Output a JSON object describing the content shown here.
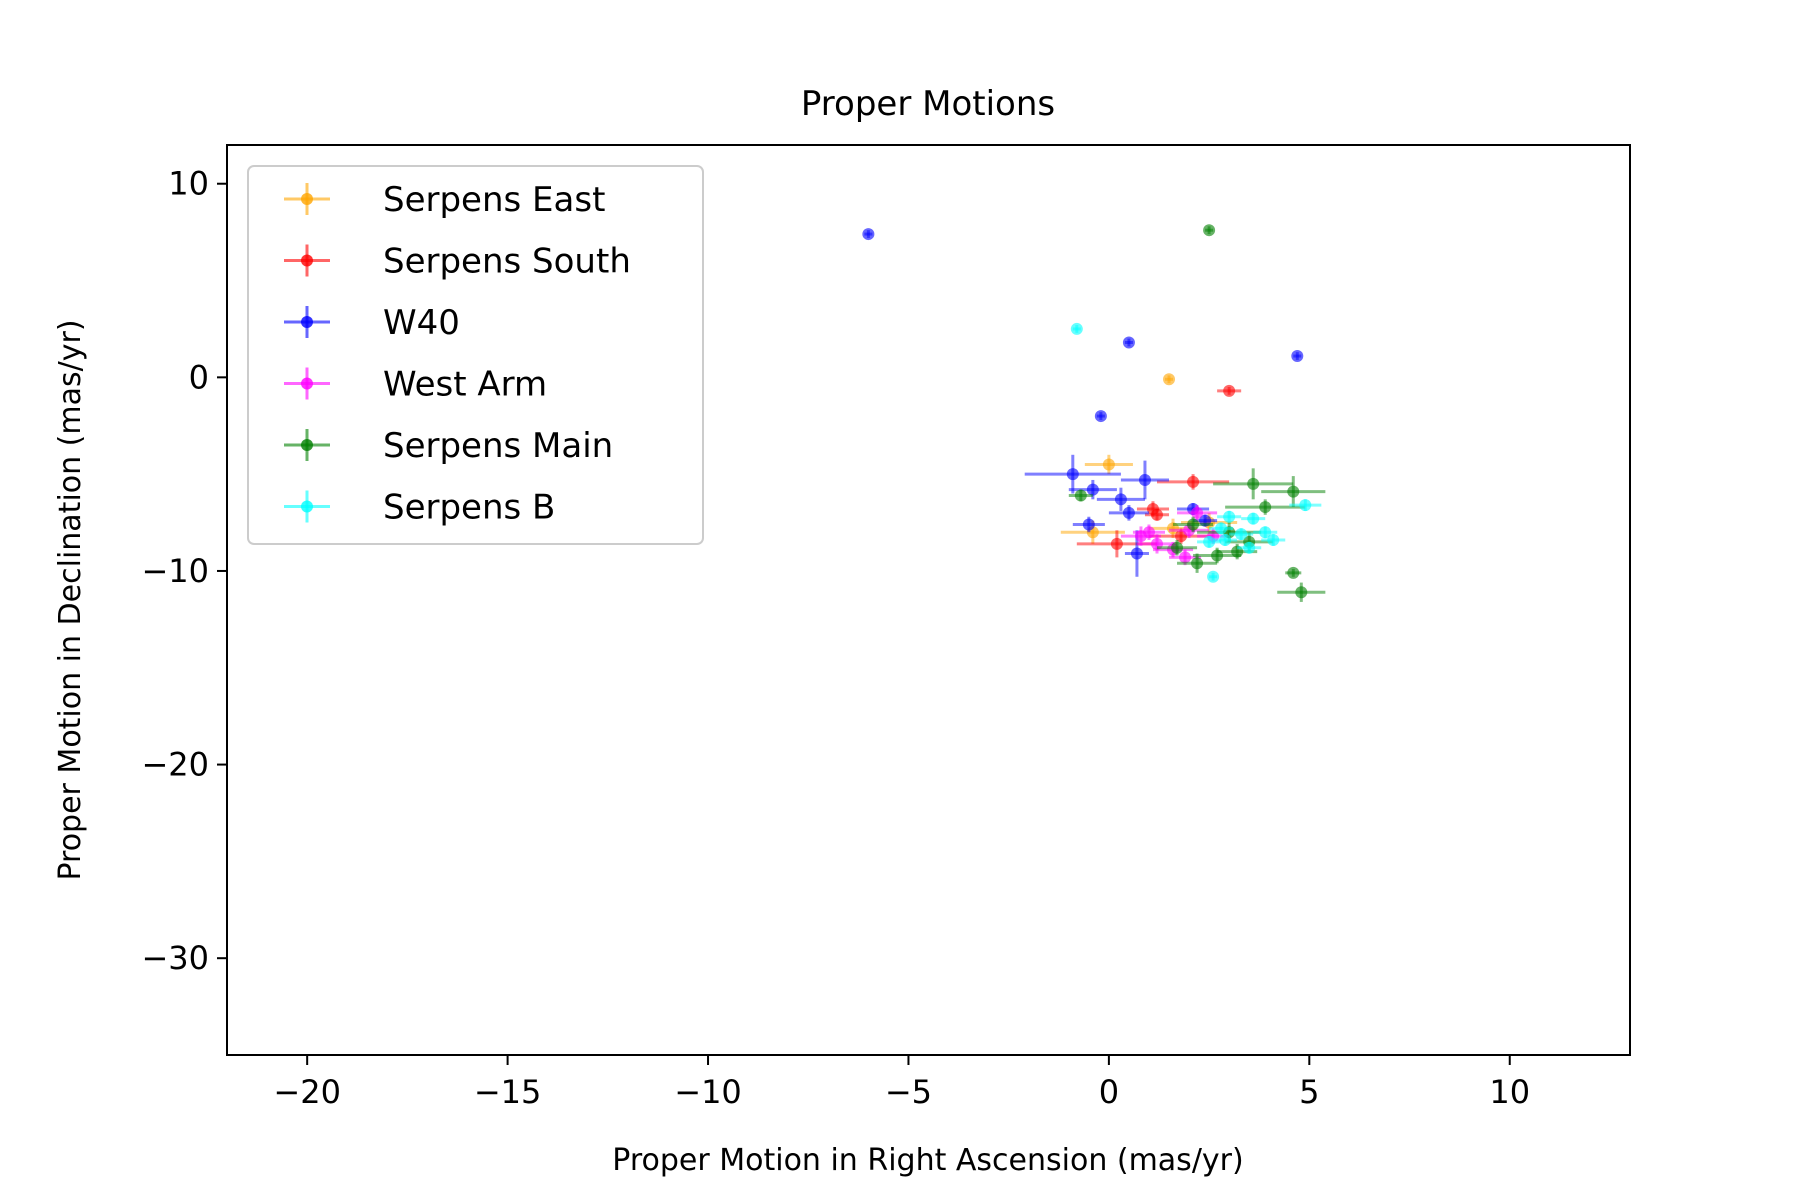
{
  "chart_data": {
    "type": "scatter",
    "title": "Proper Motions",
    "xlabel": "Proper Motion in Right Ascension (mas/yr)",
    "ylabel": "Proper Motion in Declination (mas/yr)",
    "xlim": [
      -22,
      13
    ],
    "ylim": [
      -35,
      12
    ],
    "xticks": [
      -20,
      -15,
      -10,
      -5,
      0,
      5,
      10
    ],
    "yticks": [
      10,
      0,
      -10,
      -20,
      -30
    ],
    "xtick_labels": [
      "−20",
      "−15",
      "−10",
      "−5",
      "0",
      "5",
      "10"
    ],
    "ytick_labels": [
      "10",
      "0",
      "−10",
      "−20",
      "−30"
    ],
    "grid": false,
    "legend_position": "top-left",
    "series": [
      {
        "name": "Serpens East",
        "color": "#ffa500",
        "points": [
          {
            "x": 1.5,
            "y": -0.1,
            "xerr": 0.1,
            "yerr": 0.2
          },
          {
            "x": 0.0,
            "y": -4.5,
            "xerr": 0.6,
            "yerr": 0.5
          },
          {
            "x": -0.4,
            "y": -8.0,
            "xerr": 0.8,
            "yerr": 0.6
          },
          {
            "x": 1.6,
            "y": -7.8,
            "xerr": 0.6,
            "yerr": 0.5
          },
          {
            "x": 2.5,
            "y": -7.5,
            "xerr": 0.7,
            "yerr": 0.5
          }
        ]
      },
      {
        "name": "Serpens South",
        "color": "#ff0000",
        "points": [
          {
            "x": 3.0,
            "y": -0.7,
            "xerr": 0.3,
            "yerr": 0.2
          },
          {
            "x": 2.1,
            "y": -5.4,
            "xerr": 0.9,
            "yerr": 0.4
          },
          {
            "x": 1.1,
            "y": -6.8,
            "xerr": 0.4,
            "yerr": 0.4
          },
          {
            "x": 1.2,
            "y": -7.1,
            "xerr": 0.3,
            "yerr": 0.3
          },
          {
            "x": 0.2,
            "y": -8.6,
            "xerr": 1.0,
            "yerr": 0.7
          },
          {
            "x": 1.8,
            "y": -8.2,
            "xerr": 0.8,
            "yerr": 0.4
          }
        ]
      },
      {
        "name": "W40",
        "color": "#0000ff",
        "points": [
          {
            "x": -6.0,
            "y": 7.4,
            "xerr": 0.1,
            "yerr": 0.2
          },
          {
            "x": 0.5,
            "y": 1.8,
            "xerr": 0.1,
            "yerr": 0.2
          },
          {
            "x": 4.7,
            "y": 1.1,
            "xerr": 0.1,
            "yerr": 0.2
          },
          {
            "x": -0.2,
            "y": -2.0,
            "xerr": 0.1,
            "yerr": 0.2
          },
          {
            "x": -0.9,
            "y": -5.0,
            "xerr": 1.2,
            "yerr": 1.0
          },
          {
            "x": 0.9,
            "y": -5.3,
            "xerr": 0.6,
            "yerr": 1.0
          },
          {
            "x": -0.4,
            "y": -5.8,
            "xerr": 0.6,
            "yerr": 0.5
          },
          {
            "x": 0.3,
            "y": -6.3,
            "xerr": 0.6,
            "yerr": 0.6
          },
          {
            "x": 0.5,
            "y": -7.0,
            "xerr": 0.5,
            "yerr": 0.4
          },
          {
            "x": -0.5,
            "y": -7.6,
            "xerr": 0.4,
            "yerr": 0.4
          },
          {
            "x": 0.7,
            "y": -9.1,
            "xerr": 0.3,
            "yerr": 1.2
          },
          {
            "x": 2.1,
            "y": -6.8,
            "xerr": 0.4,
            "yerr": 0.3
          },
          {
            "x": 2.4,
            "y": -7.4,
            "xerr": 0.3,
            "yerr": 0.3
          }
        ]
      },
      {
        "name": "West Arm",
        "color": "#ff00ff",
        "points": [
          {
            "x": 0.8,
            "y": -8.2,
            "xerr": 0.5,
            "yerr": 0.5
          },
          {
            "x": 1.2,
            "y": -8.6,
            "xerr": 0.5,
            "yerr": 0.5
          },
          {
            "x": 1.6,
            "y": -8.9,
            "xerr": 0.5,
            "yerr": 0.4
          },
          {
            "x": 2.0,
            "y": -7.9,
            "xerr": 0.5,
            "yerr": 0.4
          },
          {
            "x": 1.0,
            "y": -8.0,
            "xerr": 0.4,
            "yerr": 0.4
          },
          {
            "x": 1.9,
            "y": -9.3,
            "xerr": 0.4,
            "yerr": 0.4
          },
          {
            "x": 2.2,
            "y": -7.0,
            "xerr": 0.5,
            "yerr": 0.4
          },
          {
            "x": 2.6,
            "y": -8.2,
            "xerr": 0.4,
            "yerr": 0.4
          }
        ]
      },
      {
        "name": "Serpens Main",
        "color": "#008000",
        "points": [
          {
            "x": 2.5,
            "y": 7.6,
            "xerr": 0.1,
            "yerr": 0.2
          },
          {
            "x": 3.6,
            "y": -5.5,
            "xerr": 1.0,
            "yerr": 0.8
          },
          {
            "x": 4.6,
            "y": -5.9,
            "xerr": 0.8,
            "yerr": 0.8
          },
          {
            "x": -0.7,
            "y": -6.1,
            "xerr": 0.3,
            "yerr": 0.3
          },
          {
            "x": 3.9,
            "y": -6.7,
            "xerr": 1.0,
            "yerr": 0.4
          },
          {
            "x": 2.1,
            "y": -7.6,
            "xerr": 0.5,
            "yerr": 0.4
          },
          {
            "x": 3.0,
            "y": -8.0,
            "xerr": 0.8,
            "yerr": 0.5
          },
          {
            "x": 3.5,
            "y": -8.5,
            "xerr": 0.6,
            "yerr": 0.5
          },
          {
            "x": 1.7,
            "y": -8.8,
            "xerr": 0.5,
            "yerr": 0.4
          },
          {
            "x": 2.7,
            "y": -9.2,
            "xerr": 0.6,
            "yerr": 0.4
          },
          {
            "x": 2.2,
            "y": -9.6,
            "xerr": 0.5,
            "yerr": 0.5
          },
          {
            "x": 4.6,
            "y": -10.1,
            "xerr": 0.2,
            "yerr": 0.2
          },
          {
            "x": 4.8,
            "y": -11.1,
            "xerr": 0.6,
            "yerr": 0.5
          },
          {
            "x": 3.2,
            "y": -9.0,
            "xerr": 0.5,
            "yerr": 0.4
          }
        ]
      },
      {
        "name": "Serpens B",
        "color": "#00ffff",
        "points": [
          {
            "x": -0.8,
            "y": 2.5,
            "xerr": 0.1,
            "yerr": 0.2
          },
          {
            "x": 4.9,
            "y": -6.6,
            "xerr": 0.4,
            "yerr": 0.3
          },
          {
            "x": 3.6,
            "y": -7.3,
            "xerr": 0.3,
            "yerr": 0.3
          },
          {
            "x": 2.8,
            "y": -7.8,
            "xerr": 0.3,
            "yerr": 0.3
          },
          {
            "x": 3.3,
            "y": -8.1,
            "xerr": 0.3,
            "yerr": 0.3
          },
          {
            "x": 2.9,
            "y": -8.4,
            "xerr": 0.3,
            "yerr": 0.3
          },
          {
            "x": 3.9,
            "y": -8.0,
            "xerr": 0.3,
            "yerr": 0.3
          },
          {
            "x": 2.5,
            "y": -8.5,
            "xerr": 0.3,
            "yerr": 0.3
          },
          {
            "x": 4.1,
            "y": -8.4,
            "xerr": 0.3,
            "yerr": 0.3
          },
          {
            "x": 3.0,
            "y": -7.2,
            "xerr": 0.3,
            "yerr": 0.3
          },
          {
            "x": 2.6,
            "y": -10.3,
            "xerr": 0.1,
            "yerr": 0.2
          },
          {
            "x": 3.5,
            "y": -8.8,
            "xerr": 0.3,
            "yerr": 0.3
          }
        ]
      }
    ]
  }
}
